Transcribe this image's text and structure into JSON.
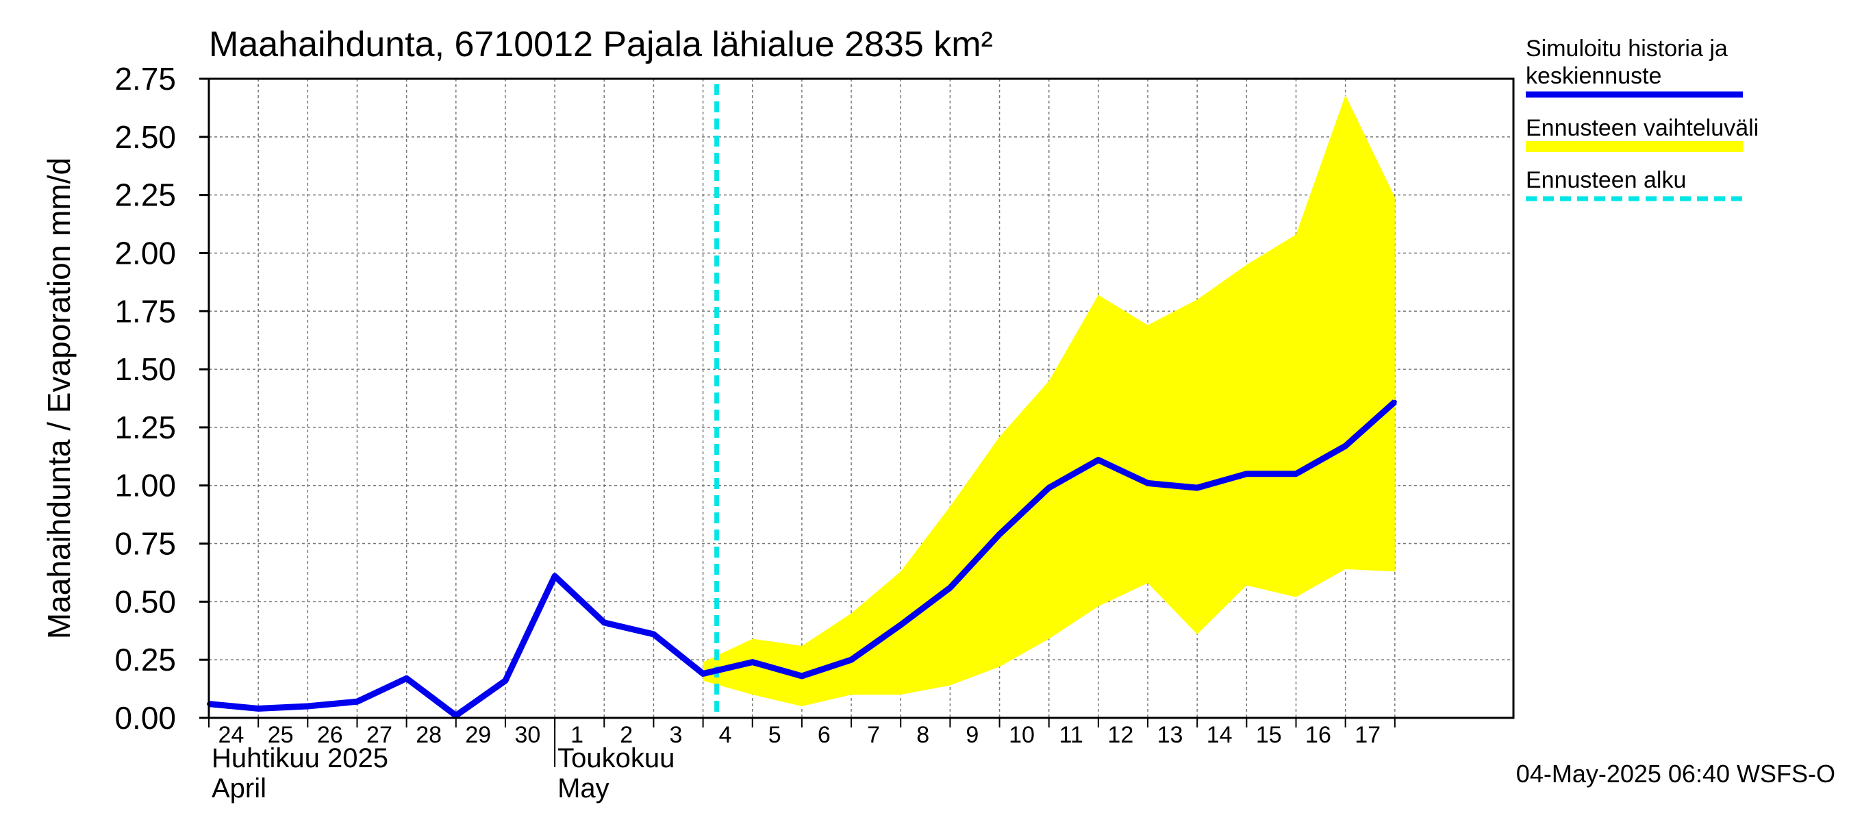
{
  "chart_data": {
    "type": "line",
    "title": "Maahaihdunta, 6710012 Pajala lähialue 2835 km²",
    "ylabel": "Maahaihdunta / Evaporation   mm/d",
    "ylim": [
      0,
      2.75
    ],
    "yticks": [
      "0.00",
      "0.25",
      "0.50",
      "0.75",
      "1.00",
      "1.25",
      "1.50",
      "1.75",
      "2.00",
      "2.25",
      "2.50",
      "2.75"
    ],
    "x_day_labels": [
      "24",
      "25",
      "26",
      "27",
      "28",
      "29",
      "30",
      "1",
      "2",
      "3",
      "4",
      "5",
      "6",
      "7",
      "8",
      "9",
      "10",
      "11",
      "12",
      "13",
      "14",
      "15",
      "16",
      "17"
    ],
    "x_dates": [
      "2025-04-24",
      "2025-04-25",
      "2025-04-26",
      "2025-04-27",
      "2025-04-28",
      "2025-04-29",
      "2025-04-30",
      "2025-05-01",
      "2025-05-02",
      "2025-05-03",
      "2025-05-04",
      "2025-05-05",
      "2025-05-06",
      "2025-05-07",
      "2025-05-08",
      "2025-05-09",
      "2025-05-10",
      "2025-05-11",
      "2025-05-12",
      "2025-05-13",
      "2025-05-14",
      "2025-05-15",
      "2025-05-16",
      "2025-05-17",
      "2025-05-18"
    ],
    "month_labels": [
      {
        "fi": "Huhtikuu  2025",
        "en": "April"
      },
      {
        "fi": "Toukokuu",
        "en": "May"
      }
    ],
    "grid": true,
    "series": [
      {
        "name": "Simuloitu historia ja keskiennuste",
        "color": "#0000ee",
        "values": [
          0.06,
          0.04,
          0.05,
          0.07,
          0.17,
          0.01,
          0.16,
          0.61,
          0.41,
          0.36,
          0.19,
          0.24,
          0.18,
          0.25,
          0.4,
          0.56,
          0.79,
          0.99,
          1.11,
          1.01,
          0.99,
          1.05,
          1.05,
          1.17,
          1.36
        ]
      },
      {
        "name": "Ennusteen vaihteluväli",
        "color": "#ffff00",
        "type": "area",
        "start_index": 10,
        "upper": [
          0.24,
          0.34,
          0.31,
          0.45,
          0.63,
          0.91,
          1.21,
          1.45,
          1.82,
          1.69,
          1.8,
          1.95,
          2.08,
          2.68,
          2.24
        ],
        "lower": [
          0.16,
          0.1,
          0.05,
          0.1,
          0.1,
          0.14,
          0.22,
          0.34,
          0.48,
          0.58,
          0.36,
          0.57,
          0.52,
          0.64,
          0.63
        ]
      },
      {
        "name": "Ennusteen alku",
        "color": "#00e5e5",
        "type": "vline",
        "x": "2025-05-04 06:40"
      }
    ],
    "legend_position": "right",
    "legend": [
      {
        "lines": [
          "Simuloitu historia ja",
          "keskiennuste"
        ],
        "color": "#0000ee",
        "style": "solid"
      },
      {
        "lines": [
          "Ennusteen vaihteluväli"
        ],
        "color": "#ffff00",
        "style": "solid"
      },
      {
        "lines": [
          "Ennusteen alku"
        ],
        "color": "#00e5e5",
        "style": "dashed"
      }
    ],
    "footer": "04-May-2025 06:40 WSFS-O"
  }
}
